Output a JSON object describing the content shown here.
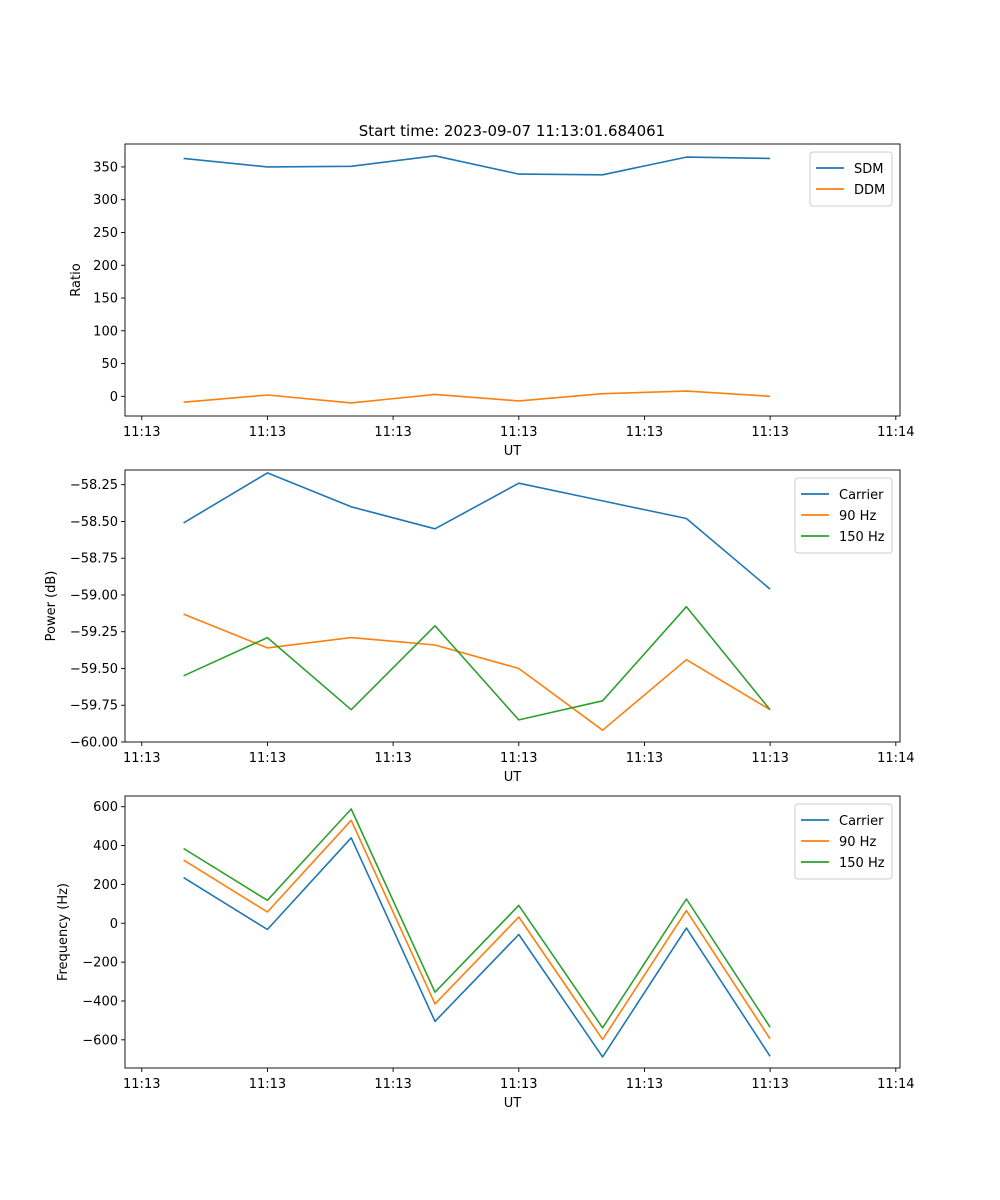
{
  "figure": {
    "title": "Start time: 2023-09-07 11:13:01.684061"
  },
  "chart_data": [
    {
      "type": "line",
      "ylabel": "Ratio",
      "xlabel": "UT",
      "ylim": [
        -30,
        385
      ],
      "yticks": [
        0,
        50,
        100,
        150,
        200,
        250,
        300,
        350
      ],
      "xlim": [
        -0.7,
        8.55
      ],
      "xtick_positions": [
        -0.5,
        1,
        2.5,
        4,
        5.5,
        7,
        8.5
      ],
      "xtick_labels": [
        "11:13",
        "11:13",
        "11:13",
        "11:13",
        "11:13",
        "11:13",
        "11:14"
      ],
      "x": [
        0,
        1,
        2,
        3,
        4,
        5,
        6,
        7
      ],
      "legend_position": "upper-right",
      "series": [
        {
          "name": "SDM",
          "color": "#1f77b4",
          "values": [
            363,
            350,
            351,
            367,
            339,
            338,
            365,
            363
          ]
        },
        {
          "name": "DDM",
          "color": "#ff7f0e",
          "values": [
            -9,
            2,
            -10,
            3,
            -7,
            4,
            8,
            0
          ]
        }
      ]
    },
    {
      "type": "line",
      "ylabel": "Power (dB)",
      "xlabel": "UT",
      "ylim": [
        -60.0,
        -58.15
      ],
      "yticks": [
        -60.0,
        -59.75,
        -59.5,
        -59.25,
        -59.0,
        -58.75,
        -58.5,
        -58.25
      ],
      "ytick_labels": [
        "−60.00",
        "−59.75",
        "−59.50",
        "−59.25",
        "−59.00",
        "−58.75",
        "−58.50",
        "−58.25"
      ],
      "xlim": [
        -0.7,
        8.55
      ],
      "xtick_positions": [
        -0.5,
        1,
        2.5,
        4,
        5.5,
        7,
        8.5
      ],
      "xtick_labels": [
        "11:13",
        "11:13",
        "11:13",
        "11:13",
        "11:13",
        "11:13",
        "11:14"
      ],
      "x": [
        0,
        1,
        2,
        3,
        4,
        5,
        6,
        7
      ],
      "legend_position": "upper-right",
      "series": [
        {
          "name": "Carrier",
          "color": "#1f77b4",
          "values": [
            -58.51,
            -58.17,
            -58.4,
            -58.55,
            -58.24,
            -58.36,
            -58.48,
            -58.96
          ]
        },
        {
          "name": "90 Hz",
          "color": "#ff7f0e",
          "values": [
            -59.13,
            -59.36,
            -59.29,
            -59.34,
            -59.5,
            -59.92,
            -59.44,
            -59.78
          ]
        },
        {
          "name": "150 Hz",
          "color": "#2ca02c",
          "values": [
            -59.55,
            -59.29,
            -59.78,
            -59.21,
            -59.85,
            -59.72,
            -59.08,
            -59.78
          ]
        }
      ]
    },
    {
      "type": "line",
      "ylabel": "Frequency (Hz)",
      "xlabel": "UT",
      "ylim": [
        -745,
        655
      ],
      "yticks": [
        -600,
        -400,
        -200,
        0,
        200,
        400,
        600
      ],
      "ytick_labels": [
        "−600",
        "−400",
        "−200",
        "0",
        "200",
        "400",
        "600"
      ],
      "xlim": [
        -0.7,
        8.55
      ],
      "xtick_positions": [
        -0.5,
        1,
        2.5,
        4,
        5.5,
        7,
        8.5
      ],
      "xtick_labels": [
        "11:13",
        "11:13",
        "11:13",
        "11:13",
        "11:13",
        "11:13",
        "11:14"
      ],
      "x": [
        0,
        1,
        2,
        3,
        4,
        5,
        6,
        7
      ],
      "legend_position": "upper-right",
      "series": [
        {
          "name": "Carrier",
          "color": "#1f77b4",
          "values": [
            235,
            -32,
            440,
            -505,
            -58,
            -688,
            -25,
            -685
          ]
        },
        {
          "name": "90 Hz",
          "color": "#ff7f0e",
          "values": [
            325,
            58,
            530,
            -415,
            32,
            -598,
            65,
            -595
          ]
        },
        {
          "name": "150 Hz",
          "color": "#2ca02c",
          "values": [
            385,
            118,
            588,
            -355,
            92,
            -538,
            125,
            -535
          ]
        }
      ]
    }
  ]
}
